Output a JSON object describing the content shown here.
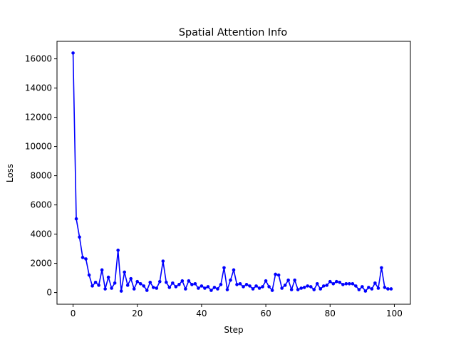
{
  "chart_data": {
    "type": "line",
    "title": "Spatial Attention Info",
    "xlabel": "Step",
    "ylabel": "Loss",
    "xlim": [
      -5,
      105
    ],
    "ylim": [
      -800,
      17200
    ],
    "xticks": [
      0,
      20,
      40,
      60,
      80,
      100
    ],
    "yticks": [
      0,
      2000,
      4000,
      6000,
      8000,
      10000,
      12000,
      14000,
      16000
    ],
    "grid": false,
    "legend": "none",
    "series": [
      {
        "color": "#0000ff",
        "marker": "circle",
        "x": [
          0,
          1,
          2,
          3,
          4,
          5,
          6,
          7,
          8,
          9,
          10,
          11,
          12,
          13,
          14,
          15,
          16,
          17,
          18,
          19,
          20,
          21,
          22,
          23,
          24,
          25,
          26,
          27,
          28,
          29,
          30,
          31,
          32,
          33,
          34,
          35,
          36,
          37,
          38,
          39,
          40,
          41,
          42,
          43,
          44,
          45,
          46,
          47,
          48,
          49,
          50,
          51,
          52,
          53,
          54,
          55,
          56,
          57,
          58,
          59,
          60,
          61,
          62,
          63,
          64,
          65,
          66,
          67,
          68,
          69,
          70,
          71,
          72,
          73,
          74,
          75,
          76,
          77,
          78,
          79,
          80,
          81,
          82,
          83,
          84,
          85,
          86,
          87,
          88,
          89,
          90,
          91,
          92,
          93,
          94,
          95,
          96,
          97,
          98,
          99
        ],
        "y": [
          16400,
          5050,
          3800,
          2400,
          2300,
          1200,
          450,
          700,
          500,
          1550,
          250,
          1050,
          300,
          650,
          2900,
          100,
          1400,
          500,
          950,
          250,
          750,
          600,
          450,
          150,
          700,
          350,
          300,
          750,
          2150,
          700,
          350,
          650,
          400,
          550,
          800,
          250,
          800,
          550,
          600,
          300,
          450,
          300,
          400,
          150,
          350,
          250,
          550,
          1700,
          200,
          850,
          1550,
          550,
          600,
          400,
          550,
          450,
          250,
          450,
          300,
          400,
          800,
          400,
          150,
          1250,
          1200,
          300,
          500,
          850,
          200,
          850,
          200,
          300,
          350,
          450,
          400,
          200,
          600,
          250,
          450,
          500,
          750,
          600,
          750,
          700,
          550,
          600,
          600,
          600,
          450,
          200,
          400,
          100,
          350,
          250,
          650,
          300,
          1700,
          350,
          250,
          250
        ]
      }
    ]
  }
}
